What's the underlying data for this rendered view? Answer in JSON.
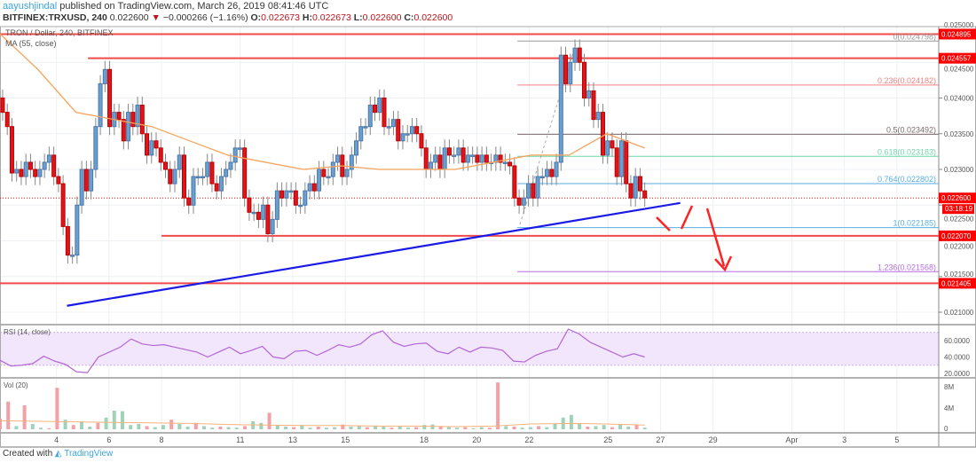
{
  "header": {
    "user": "aayushjindal",
    "published": "published on TradingView.com, March 26, 2019 08:41:46 UTC",
    "symbol": "BITFINEX:TRXUSD, 240",
    "last": "0.022600",
    "change": "−0.000266 (−1.16%)",
    "o_label": "O:",
    "o": "0.022673",
    "h_label": "H:",
    "h": "0.022673",
    "l_label": "L:",
    "l": "0.022600",
    "c_label": "C:",
    "c": "0.022600"
  },
  "footer": {
    "created": "Created with",
    "brand": "TradingView"
  },
  "chart_data": {
    "type": "candlestick",
    "title": "TRON / Dollar, 240, BITFINEX",
    "indicator_label": "MA (55, close)",
    "colors": {
      "up": "#6a9fd0",
      "down": "#e0141a",
      "ma": "#f7a35c",
      "trendline": "#1a1ae6",
      "level": "#f04a4a",
      "rsi": "#b266d6",
      "rsi_band": "#f2e6fc"
    },
    "x_range": [
      "2019-03-01",
      "2019-04-06"
    ],
    "x_ticks": [
      "4",
      "6",
      "8",
      "11",
      "13",
      "15",
      "18",
      "20",
      "22",
      "25",
      "27",
      "29",
      "Apr",
      "3",
      "5"
    ],
    "x_tick_days": [
      4,
      6,
      8,
      11,
      13,
      15,
      18,
      20,
      22,
      25,
      27,
      29,
      32,
      34,
      36
    ],
    "y_range": [
      0.0207,
      0.0251
    ],
    "y_ticks": [
      "0.025000",
      "0.024500",
      "0.024000",
      "0.023500",
      "0.023000",
      "0.022500",
      "0.022000",
      "0.021500",
      "0.021000"
    ],
    "candle_span_days": [
      1.95,
      26.4
    ],
    "closes": [
      0.0238,
      0.0236,
      0.02295,
      0.023,
      0.0229,
      0.0231,
      0.023,
      0.0229,
      0.023,
      0.0231,
      0.0232,
      0.0229,
      0.0228,
      0.0222,
      0.0218,
      0.0218,
      0.0225,
      0.023,
      0.0227,
      0.023,
      0.0236,
      0.0242,
      0.0244,
      0.0236,
      0.0238,
      0.0237,
      0.0234,
      0.0238,
      0.0236,
      0.0239,
      0.0235,
      0.0232,
      0.0234,
      0.0233,
      0.0231,
      0.023,
      0.0228,
      0.023,
      0.0232,
      0.0226,
      0.0225,
      0.0229,
      0.0229,
      0.0229,
      0.0231,
      0.0228,
      0.0227,
      0.0229,
      0.023,
      0.0231,
      0.0233,
      0.0233,
      0.0226,
      0.0224,
      0.0224,
      0.0223,
      0.0225,
      0.0221,
      0.0223,
      0.0227,
      0.0226,
      0.0227,
      0.0227,
      0.0225,
      0.0225,
      0.0227,
      0.0228,
      0.0227,
      0.023,
      0.0229,
      0.0229,
      0.0231,
      0.0232,
      0.0229,
      0.023,
      0.0232,
      0.0234,
      0.0236,
      0.0236,
      0.0239,
      0.0238,
      0.024,
      0.0236,
      0.0236,
      0.0237,
      0.0234,
      0.0235,
      0.0235,
      0.0236,
      0.0235,
      0.0233,
      0.023,
      0.0231,
      0.0232,
      0.023,
      0.0233,
      0.0232,
      0.0232,
      0.0233,
      0.0231,
      0.0232,
      0.0232,
      0.0231,
      0.0232,
      0.0231,
      0.0231,
      0.0232,
      0.0231,
      0.0231,
      0.02305,
      0.0226,
      0.0225,
      0.0226,
      0.0228,
      0.0226,
      0.0229,
      0.0229,
      0.023,
      0.0229,
      0.0231,
      0.0246,
      0.0242,
      0.0245,
      0.0247,
      0.0245,
      0.024,
      0.0241,
      0.0237,
      0.0238,
      0.0232,
      0.0234,
      0.0233,
      0.0229,
      0.0234,
      0.0228,
      0.0226,
      0.0229,
      0.0227,
      0.0226
    ],
    "ma_55": [
      0.0249,
      0.0244,
      0.0238,
      0.0237,
      0.0236,
      0.0234,
      0.0232,
      0.0231,
      0.023,
      0.02305,
      0.023,
      0.023,
      0.023,
      0.0231,
      0.0232,
      0.0232,
      0.0235,
      0.0233
    ],
    "levels": [
      {
        "price": 0.024895,
        "label": "0.024895",
        "from_day": 1.85
      },
      {
        "price": 0.024557,
        "label": "0.024557",
        "from_day": 5.2
      },
      {
        "price": 0.02207,
        "label": "0.022070",
        "from_day": 8.0
      },
      {
        "price": 0.021405,
        "label": "0.021405",
        "from_day": 1.85
      }
    ],
    "current": {
      "price": 0.0226,
      "label": "0.022600",
      "countdown": "03:18:19"
    },
    "trendline": {
      "from": [
        4.4,
        0.02109
      ],
      "to": [
        27.75,
        0.02253
      ]
    },
    "fib": {
      "from_day": 21.55,
      "levels": [
        {
          "label": "0(0.024798)",
          "price": 0.024798,
          "color": "#999999"
        },
        {
          "label": "0.236(0.024182)",
          "price": 0.024182,
          "color": "#f08080"
        },
        {
          "label": "0.5(0.023492)",
          "price": 0.023492,
          "color": "#7a6a6a"
        },
        {
          "label": "0.618(0.023183)",
          "price": 0.023183,
          "color": "#6fd6a8"
        },
        {
          "label": "0.764(0.022802)",
          "price": 0.022802,
          "color": "#5aaee0"
        },
        {
          "label": "1(0.022185)",
          "price": 0.022185,
          "color": "#5aaee0"
        },
        {
          "label": "1.236(0.021568)",
          "price": 0.021568,
          "color": "#b36ee0"
        }
      ]
    },
    "rsi": {
      "label": "RSI (14, close)",
      "ticks": [
        "60.0000",
        "40.0000",
        "20.0000"
      ],
      "band": [
        30,
        70
      ],
      "values": [
        36,
        29,
        30,
        32,
        41,
        35,
        31,
        22,
        21,
        40,
        46,
        52,
        62,
        56,
        54,
        55,
        52,
        49,
        46,
        40,
        46,
        52,
        44,
        48,
        53,
        40,
        38,
        47,
        48,
        42,
        48,
        55,
        52,
        56,
        67,
        72,
        58,
        53,
        56,
        57,
        47,
        44,
        52,
        46,
        52,
        51,
        48,
        35,
        34,
        42,
        47,
        50,
        74,
        68,
        58,
        52,
        46,
        40,
        44,
        40
      ]
    },
    "volume": {
      "label": "Vol (20)",
      "ticks": [
        "8M",
        "4M",
        "0"
      ],
      "values": [
        2.0,
        5.2,
        0.6,
        4.5,
        1.0,
        0.3,
        0.2,
        7.8,
        1.8,
        0.8,
        1.5,
        0.5,
        1.2,
        2.2,
        3.5,
        3.4,
        0.8,
        1.0,
        0.6,
        0.4,
        0.8,
        1.8,
        1.0,
        0.5,
        1.2,
        0.6,
        0.3,
        0.5,
        0.4,
        0.3,
        0.6,
        1.5,
        1.2,
        3.1,
        0.8,
        0.5,
        0.4,
        0.8,
        0.3,
        0.5,
        0.3,
        0.4,
        0.9,
        0.5,
        0.6,
        0.4,
        0.7,
        0.5,
        0.3,
        0.5,
        0.3,
        0.4,
        0.8,
        0.9,
        0.6,
        0.4,
        0.3,
        0.4,
        0.2,
        0.4,
        0.3,
        8.8,
        0.6,
        0.5,
        0.3,
        0.4,
        0.6,
        0.4,
        1.0,
        2.2,
        2.7,
        1.0,
        0.5,
        0.6,
        0.8,
        0.4,
        0.9,
        0.5,
        0.8,
        0.3
      ],
      "ma": [
        1.6,
        1.5,
        1.4,
        1.3,
        1.2,
        1.1,
        0.9,
        0.8,
        0.7,
        0.7,
        0.6,
        0.6,
        0.5,
        0.6,
        1.0,
        1.1,
        1.0,
        0.8
      ]
    }
  }
}
